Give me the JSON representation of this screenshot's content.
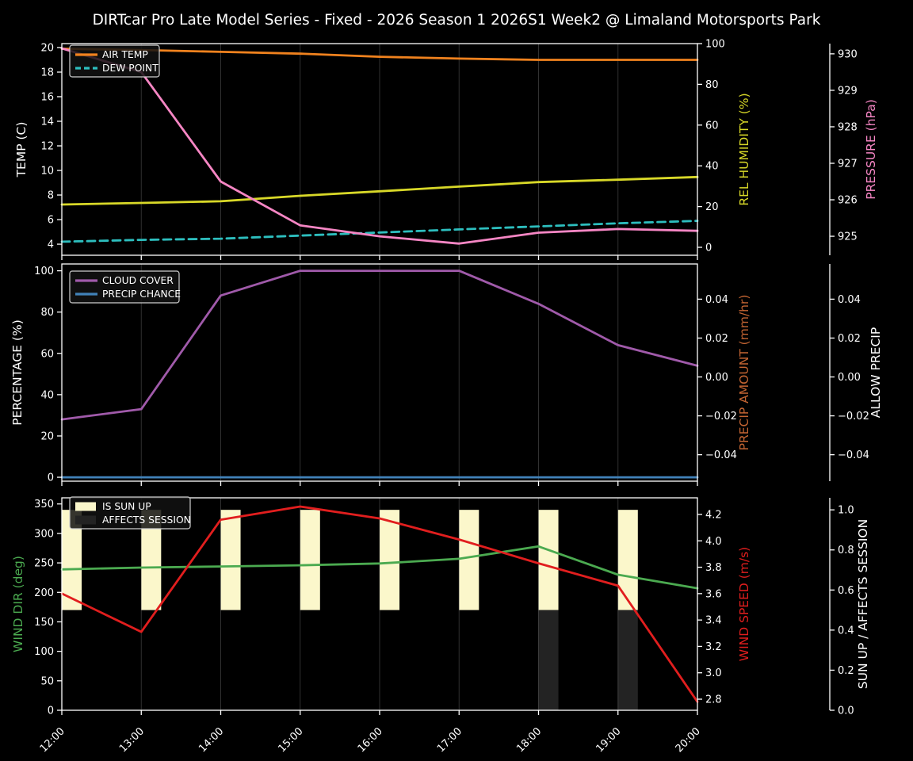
{
  "title": "DIRTcar Pro Late Model Series - Fixed - 2026 Season 1 2026S1 Week2 @ Limaland Motorsports Park",
  "x_axis": {
    "labels": [
      "12:00",
      "13:00",
      "14:00",
      "15:00",
      "16:00",
      "17:00",
      "18:00",
      "19:00",
      "20:00"
    ]
  },
  "chart_data": {
    "type": "line",
    "x": [
      "12:00",
      "13:00",
      "14:00",
      "15:00",
      "16:00",
      "17:00",
      "18:00",
      "19:00",
      "20:00"
    ],
    "panels": [
      {
        "name": "temperature-humidity-pressure",
        "legend": [
          {
            "label": "AIR TEMP",
            "color": "#f0821e",
            "style": "line-solid"
          },
          {
            "label": "DEW POINT",
            "color": "#2dbebe",
            "style": "line-dashed"
          }
        ],
        "axes": {
          "left": {
            "label": "TEMP (C)",
            "color": "#ffffff",
            "tick_values": [
              20,
              18,
              16,
              14,
              12,
              10,
              8,
              6,
              4
            ],
            "tick_labels": [
              "20",
              "18",
              "16",
              "14",
              "12",
              "10",
              "8",
              "6",
              "4"
            ],
            "range": [
              3.1,
              20.32
            ]
          },
          "right_inner": {
            "label": "REL HUMIDITY (%)",
            "color": "#d8d828",
            "tick_values": [
              100,
              80,
              60,
              40,
              20,
              0
            ],
            "tick_labels": [
              "100",
              "80",
              "60",
              "40",
              "20",
              "0"
            ],
            "range": [
              -3.9,
              100.0
            ]
          },
          "right_outer": {
            "label": "PRESSURE (hPa)",
            "color": "#f686c4",
            "tick_values": [
              930,
              929,
              928,
              927,
              926,
              925
            ],
            "tick_labels": [
              "930",
              "929",
              "928",
              "927",
              "926",
              "925"
            ],
            "range": [
              924.48,
              930.28
            ]
          }
        },
        "series": [
          {
            "name": "AIR TEMP",
            "axis": "left",
            "color": "#f0821e",
            "dash": false,
            "values": [
              19.9,
              19.8,
              19.65,
              19.5,
              19.25,
              19.1,
              19.0,
              19.0,
              19.0
            ]
          },
          {
            "name": "DEW POINT",
            "axis": "left",
            "color": "#2dbebe",
            "dash": true,
            "values": [
              4.2,
              4.35,
              4.45,
              4.7,
              4.95,
              5.2,
              5.45,
              5.7,
              5.9
            ]
          },
          {
            "name": "REL HUMIDITY",
            "axis": "right_inner",
            "color": "#d8d828",
            "dash": false,
            "values": [
              21,
              21.8,
              22.6,
              25.3,
              27.5,
              29.8,
              32,
              33.2,
              34.5
            ]
          },
          {
            "name": "PRESSURE",
            "axis": "right_outer",
            "color": "#f686c4",
            "dash": false,
            "values": [
              930.15,
              929.5,
              926.5,
              925.3,
              925.0,
              924.8,
              925.1,
              925.2,
              925.15
            ]
          }
        ]
      },
      {
        "name": "cloud-precip",
        "legend": [
          {
            "label": "CLOUD COVER",
            "color": "#a05aaa",
            "style": "line-solid"
          },
          {
            "label": "PRECIP CHANCE",
            "color": "#4182b9",
            "style": "line-solid"
          }
        ],
        "axes": {
          "left": {
            "label": "PERCENTAGE (%)",
            "color": "#ffffff",
            "tick_values": [
              100,
              80,
              60,
              40,
              20,
              0
            ],
            "tick_labels": [
              "100",
              "80",
              "60",
              "40",
              "20",
              "0"
            ],
            "range": [
              -1.9,
              103.3
            ]
          },
          "right_inner": {
            "label": "PRECIP AMOUNT (mm/hr)",
            "color": "#c36432",
            "tick_values": [
              0.04,
              0.02,
              0,
              -0.02,
              -0.04
            ],
            "tick_labels": [
              "0.04",
              "0.02",
              "0.00",
              "−0.02",
              "−0.04"
            ],
            "range": [
              -0.0536,
              0.0581
            ]
          },
          "right_outer": {
            "label": "ALLOW PRECIP",
            "color": "#ffffff",
            "tick_values": [
              0.04,
              0.02,
              0,
              -0.02,
              -0.04
            ],
            "tick_labels": [
              "0.04",
              "0.02",
              "0.00",
              "−0.02",
              "−0.04"
            ],
            "range": [
              -0.0536,
              0.0581
            ]
          }
        },
        "series": [
          {
            "name": "CLOUD COVER",
            "axis": "left",
            "color": "#a05aaa",
            "dash": false,
            "values": [
              28,
              33,
              88,
              100,
              100,
              100,
              84,
              64,
              54
            ]
          },
          {
            "name": "PRECIP CHANCE",
            "axis": "left",
            "color": "#4182b9",
            "dash": false,
            "values": [
              0,
              0,
              0,
              0,
              0,
              0,
              0,
              0,
              0
            ]
          }
        ]
      },
      {
        "name": "wind-sun",
        "legend": [
          {
            "label": "IS SUN UP",
            "color": "#fbf7cb",
            "style": "patch"
          },
          {
            "label": "AFFECTS SESSION",
            "color": "#232323",
            "style": "patch"
          }
        ],
        "axes": {
          "left": {
            "label": "WIND DIR (deg)",
            "color": "#4baa50",
            "tick_values": [
              350,
              300,
              250,
              200,
              150,
              100,
              50,
              0
            ],
            "tick_labels": [
              "350",
              "300",
              "250",
              "200",
              "150",
              "100",
              "50",
              "0"
            ],
            "range": [
              0,
              360.4
            ]
          },
          "right_inner": {
            "label": "WIND SPEED (m/s)",
            "color": "#e11e1e",
            "tick_values": [
              4.2,
              4.0,
              3.8,
              3.6,
              3.4,
              3.2,
              3.0,
              2.8
            ],
            "tick_labels": [
              "4.2",
              "4.0",
              "3.8",
              "3.6",
              "3.4",
              "3.2",
              "3.0",
              "2.8"
            ],
            "range": [
              2.716,
              4.326
            ]
          },
          "right_outer": {
            "label": "SUN UP / AFFECTS SESSION",
            "color": "#ffffff",
            "tick_values": [
              1.0,
              0.8,
              0.6,
              0.4,
              0.2,
              0.0
            ],
            "tick_labels": [
              "1.0",
              "0.8",
              "0.6",
              "0.4",
              "0.2",
              "0.0"
            ],
            "range": [
              0,
              1.06
            ]
          }
        },
        "series": [
          {
            "name": "WIND DIR",
            "axis": "left",
            "color": "#4baa50",
            "dash": false,
            "values": [
              239,
              242,
              244,
              246,
              249,
              257,
              278,
              230,
              207
            ]
          },
          {
            "name": "WIND SPEED",
            "axis": "right_inner",
            "color": "#e11e1e",
            "dash": false,
            "values": [
              3.6,
              3.31,
              4.16,
              4.26,
              4.17,
              4.01,
              3.83,
              3.66,
              2.78
            ]
          }
        ],
        "bars": {
          "axis": "right_outer",
          "width_hours": 0.25,
          "groups": [
            {
              "name": "IS SUN UP",
              "color": "#fbf7cb",
              "from": 0.5,
              "to": 1.0,
              "values": [
                1,
                1,
                1,
                1,
                1,
                1,
                1,
                1,
                0
              ]
            },
            {
              "name": "AFFECTS SESSION",
              "color": "#232323",
              "from": 0.0,
              "to": 0.5,
              "values": [
                0,
                0,
                0,
                0,
                0,
                0,
                1,
                1,
                0
              ]
            }
          ]
        }
      }
    ]
  }
}
